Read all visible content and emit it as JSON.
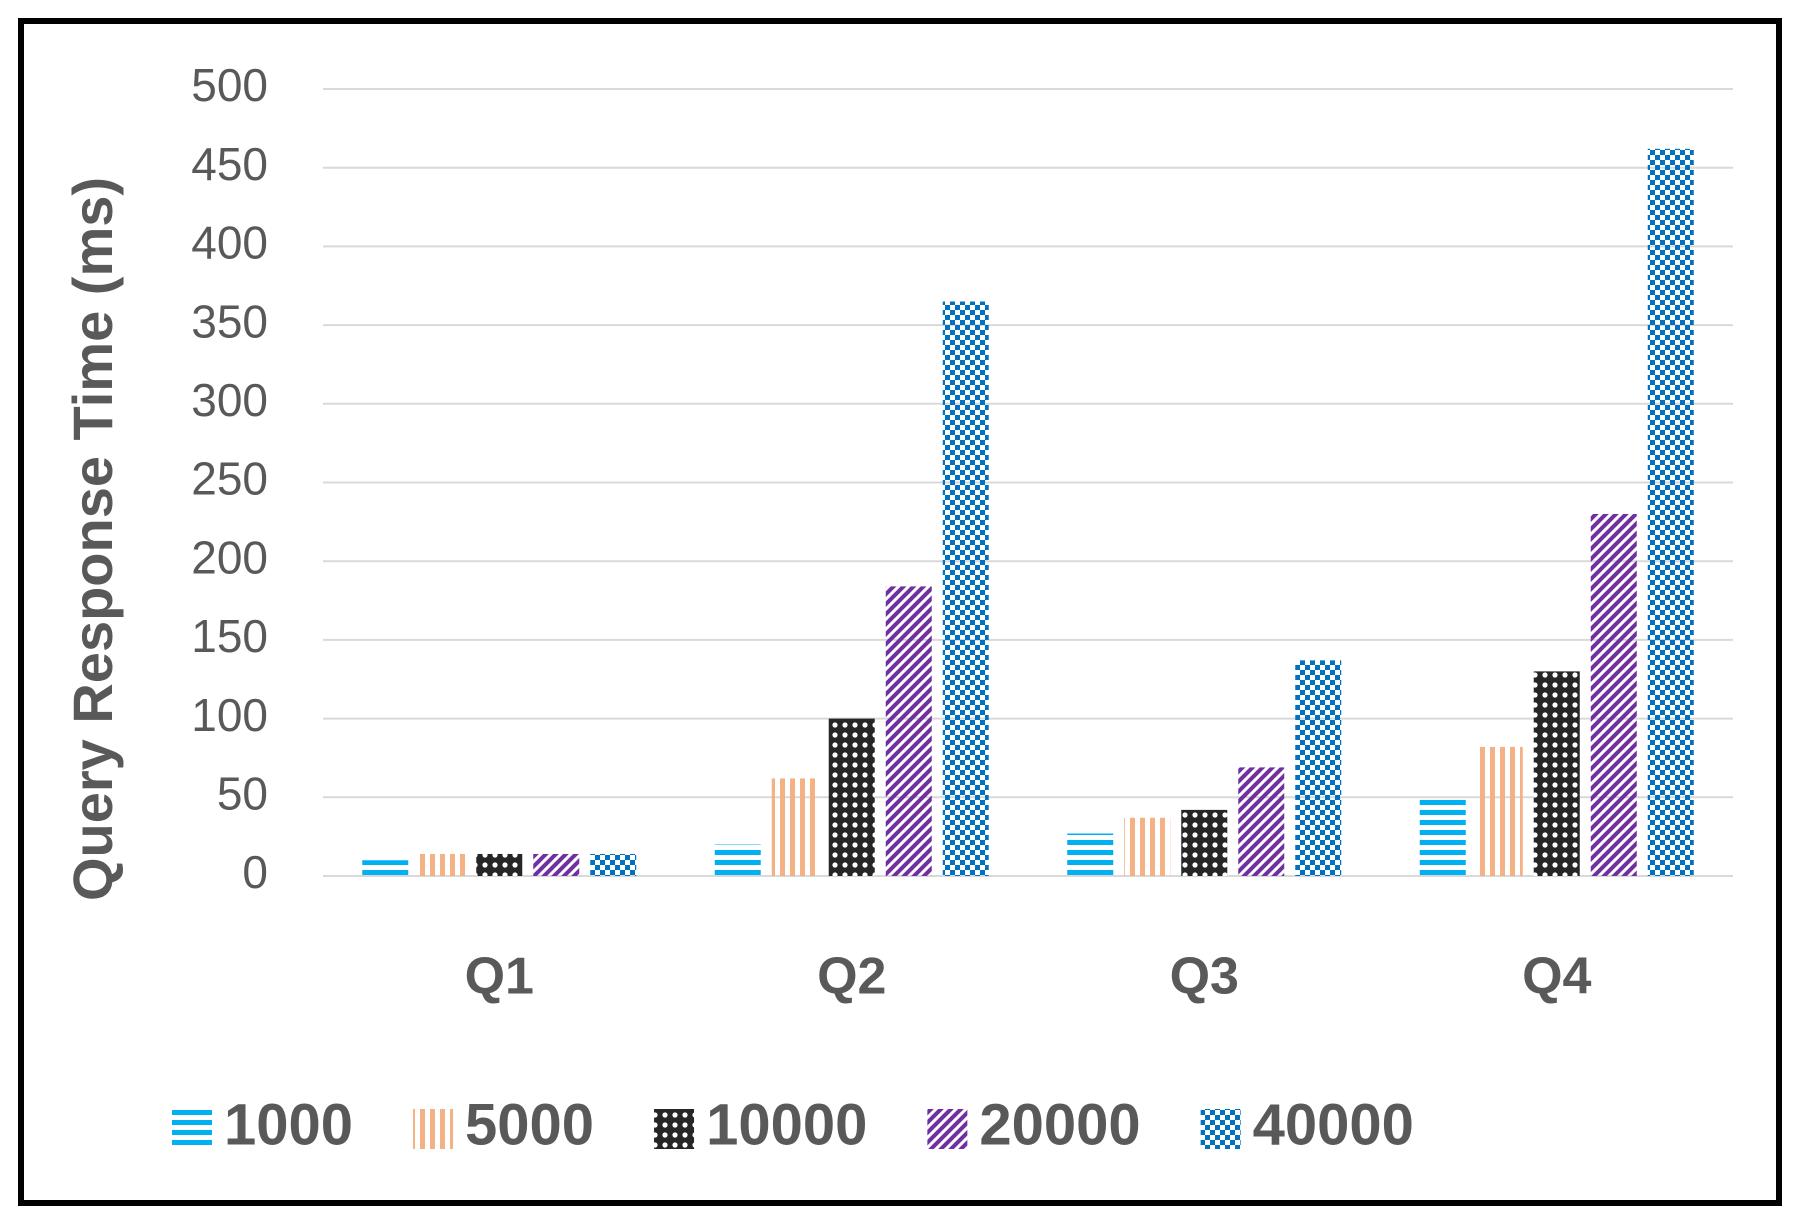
{
  "chart_data": {
    "type": "bar",
    "y_label": "Query Response Time (ms)",
    "categories": [
      "Q1",
      "Q2",
      "Q3",
      "Q4"
    ],
    "series": [
      {
        "name": "1000",
        "color": "#00b0f0",
        "values": [
          10,
          20,
          27,
          50
        ]
      },
      {
        "name": "5000",
        "color": "#f4b183",
        "values": [
          14,
          62,
          37,
          82
        ]
      },
      {
        "name": "10000",
        "color": "#262626",
        "values": [
          14,
          100,
          42,
          130
        ]
      },
      {
        "name": "20000",
        "color": "#7030a0",
        "values": [
          14,
          184,
          69,
          230
        ]
      },
      {
        "name": "40000",
        "color": "#0070c0",
        "values": [
          14,
          365,
          137,
          462
        ]
      }
    ],
    "ylim": [
      0,
      500
    ],
    "yticks": [
      0,
      50,
      100,
      150,
      200,
      250,
      300,
      350,
      400,
      450,
      500
    ],
    "grid": true,
    "legend": "bottom"
  }
}
